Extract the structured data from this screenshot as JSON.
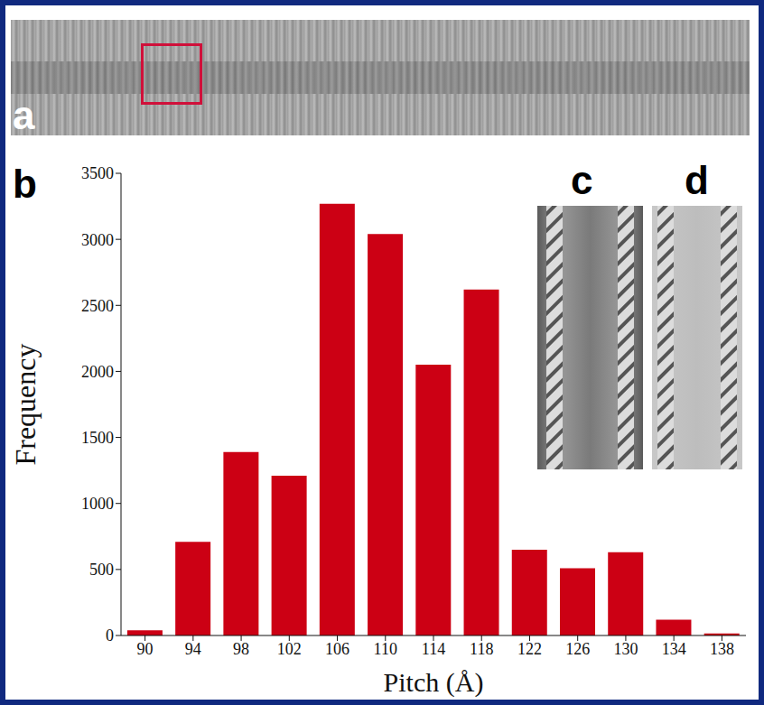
{
  "chart_data": {
    "type": "bar",
    "x_label": "Pitch (Å)",
    "y_label": "Frequency",
    "categories": [
      90,
      94,
      98,
      102,
      106,
      110,
      114,
      118,
      122,
      126,
      130,
      134,
      138
    ],
    "values": [
      40,
      710,
      1390,
      1210,
      3270,
      3040,
      2050,
      2620,
      650,
      510,
      630,
      120,
      15
    ],
    "color": "#cc0014",
    "ylim": [
      0,
      3500
    ],
    "yticks": [
      0,
      500,
      1000,
      1500,
      2000,
      2500,
      3000,
      3500
    ],
    "grid": false
  },
  "panel_labels": {
    "micrograph": "a",
    "histogram": "b",
    "average": "c",
    "model": "d"
  }
}
